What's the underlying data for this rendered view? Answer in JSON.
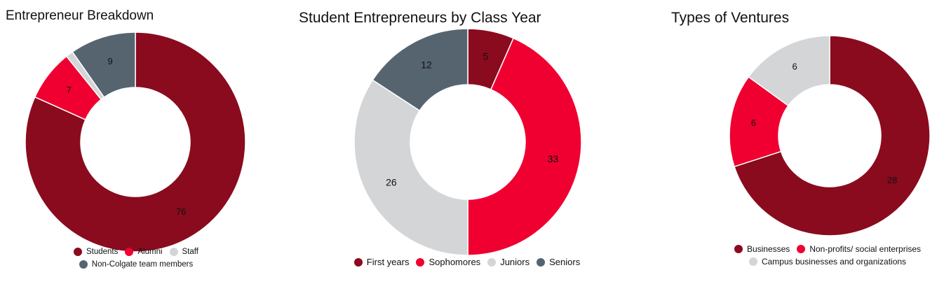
{
  "chart_data": [
    {
      "type": "pie",
      "title": "Entrepreneur Breakdown",
      "categories": [
        "Students",
        "Alumni",
        "Staff",
        "Non-Colgate team members"
      ],
      "values": [
        76,
        7,
        1,
        9
      ],
      "data_labels": [
        "76",
        "7",
        "",
        "9"
      ],
      "colors": [
        "#8a0b1e",
        "#ef0031",
        "#d4d5d7",
        "#566470"
      ],
      "legend_rows": [
        [
          0,
          1,
          2
        ],
        [
          3
        ]
      ],
      "legend_position": "bottom",
      "donut": true
    },
    {
      "type": "pie",
      "title": "Student Entrepreneurs by Class Year",
      "categories": [
        "First years",
        "Sophomores",
        "Juniors",
        "Seniors"
      ],
      "values": [
        5,
        33,
        26,
        12
      ],
      "data_labels": [
        "5",
        "33",
        "26",
        "12"
      ],
      "colors": [
        "#8a0b1e",
        "#ef0031",
        "#d4d5d7",
        "#566470"
      ],
      "legend_rows": [
        [
          0,
          1,
          2,
          3
        ]
      ],
      "legend_position": "bottom",
      "donut": true
    },
    {
      "type": "pie",
      "title": "Types of Ventures",
      "categories": [
        "Businesses",
        "Non-profits/ social enterprises",
        "Campus businesses and organizations"
      ],
      "values": [
        28,
        6,
        6
      ],
      "data_labels": [
        "28",
        "6",
        "6"
      ],
      "colors": [
        "#8a0b1e",
        "#ef0031",
        "#d4d5d7"
      ],
      "legend_rows": [
        [
          0,
          1
        ],
        [
          2
        ]
      ],
      "legend_position": "bottom",
      "donut": true
    }
  ]
}
